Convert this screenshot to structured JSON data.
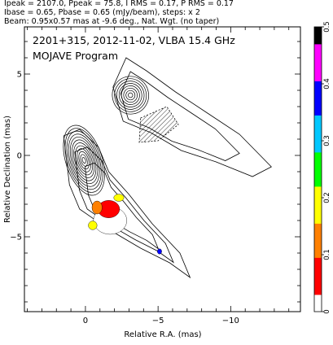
{
  "header": {
    "line1": "Ipeak = 2107.0, Ppeak = 75.8, I RMS = 0.17, P RMS = 0.17",
    "line2": "Ibase = 0.65, Pbase = 0.65 (mJy/beam), steps: x 2",
    "line3": "Beam: 0.95x0.57 mas at -9.6 deg., Nat. Wgt. (no taper)"
  },
  "chart_data": {
    "type": "heatmap",
    "title": "2201+315, 2012-11-02, VLBA 15.4 GHz",
    "subtitle": "MOJAVE Program",
    "xlabel": "Relative R.A. (mas)",
    "ylabel": "Relative Declination (mas)",
    "xlim": [
      4.2,
      -14.8
    ],
    "ylim": [
      -9.6,
      7.9
    ],
    "x_ticks": [
      0,
      -5,
      -10
    ],
    "y_ticks": [
      5,
      0,
      -5
    ],
    "x_tick_labels": [
      "0",
      "−5",
      "−10"
    ],
    "y_tick_labels": [
      "5",
      "0",
      "−5"
    ],
    "colorbar": {
      "range": [
        0,
        0.5
      ],
      "ticks": [
        0,
        0.1,
        0.2,
        0.3,
        0.4,
        0.5
      ],
      "tick_labels": [
        "0",
        "0.1",
        "0.2",
        "0.3",
        "0.4",
        "0.5"
      ],
      "colors": [
        "#ffffff",
        "#ff0000",
        "#ff8000",
        "#ffff00",
        "#00ff00",
        "#00c8ff",
        "#0000ff",
        "#ff00ff",
        "#000000"
      ]
    },
    "contours": {
      "core": {
        "x": 0.1,
        "y": -0.3,
        "levels": 12,
        "pa_deg": -18,
        "rx": 1.25,
        "ry": 2.5
      },
      "knot": {
        "x": -3.1,
        "y": 3.7,
        "levels": 8,
        "pa_deg": -10,
        "rx": 1.25,
        "ry": 1.3
      },
      "jet_envelope": [
        [
          1.5,
          1.2
        ],
        [
          1.1,
          -1.8
        ],
        [
          0.4,
          -3.3
        ],
        [
          -1.7,
          -4.6
        ],
        [
          -3.8,
          -5.7
        ],
        [
          -5.8,
          -6.6
        ],
        [
          -7.2,
          -7.5
        ],
        [
          -6.5,
          -6.0
        ],
        [
          -4.6,
          -4.2
        ],
        [
          -3.0,
          -2.4
        ],
        [
          -1.6,
          -1.0
        ],
        [
          -0.9,
          0.5
        ],
        [
          0.4,
          1.6
        ]
      ],
      "extended_envelope": [
        [
          -1.9,
          4.2
        ],
        [
          -2.8,
          6.0
        ],
        [
          -4.2,
          5.2
        ],
        [
          -6.2,
          3.9
        ],
        [
          -8.4,
          2.6
        ],
        [
          -10.6,
          1.3
        ],
        [
          -12.8,
          -0.7
        ],
        [
          -11.5,
          -1.3
        ],
        [
          -9.0,
          -0.4
        ],
        [
          -6.6,
          0.3
        ],
        [
          -4.5,
          1.4
        ],
        [
          -2.6,
          2.1
        ]
      ],
      "negative_patch": [
        [
          -3.8,
          2.3
        ],
        [
          -5.6,
          3.0
        ],
        [
          -6.4,
          1.9
        ],
        [
          -5.0,
          0.9
        ],
        [
          -3.7,
          0.8
        ]
      ]
    },
    "polarization": [
      {
        "x": -1.7,
        "y": -4.0,
        "value": 0.03,
        "rx": 1.15,
        "ry": 0.95
      },
      {
        "x": -1.6,
        "y": -3.3,
        "value": 0.06,
        "rx": 0.75,
        "ry": 0.6
      },
      {
        "x": -0.8,
        "y": -3.2,
        "value": 0.14,
        "rx": 0.35,
        "ry": 0.45
      },
      {
        "x": -0.5,
        "y": -4.3,
        "value": 0.2,
        "rx": 0.3,
        "ry": 0.3
      },
      {
        "x": -2.3,
        "y": -2.6,
        "value": 0.21,
        "rx": 0.35,
        "ry": 0.25
      },
      {
        "x": -5.1,
        "y": -5.9,
        "value": 0.38,
        "rx": 0.15,
        "ry": 0.18
      }
    ]
  }
}
